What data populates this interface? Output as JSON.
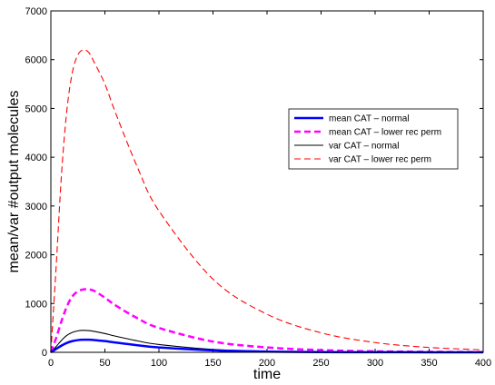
{
  "chart_data": {
    "type": "line",
    "title": "",
    "xlabel": "time",
    "ylabel": "mean/var #output molecules",
    "xlim": [
      0,
      400
    ],
    "ylim": [
      0,
      7000
    ],
    "x_ticks": [
      0,
      50,
      100,
      150,
      200,
      250,
      300,
      350,
      400
    ],
    "y_ticks": [
      0,
      1000,
      2000,
      3000,
      4000,
      5000,
      6000,
      7000
    ],
    "grid": false,
    "legend_position": "center-right",
    "series": [
      {
        "name": "mean CAT – normal",
        "color": "#0000ff",
        "style": "solid-thick",
        "x": [
          0,
          5,
          10,
          15,
          20,
          25,
          30,
          35,
          40,
          50,
          60,
          80,
          100,
          150,
          200,
          250,
          300,
          350,
          400
        ],
        "y": [
          0,
          70,
          140,
          195,
          230,
          250,
          258,
          258,
          252,
          230,
          200,
          145,
          100,
          40,
          15,
          5,
          2,
          1,
          0
        ]
      },
      {
        "name": "mean CAT – lower rec perm",
        "color": "#ff00ff",
        "style": "dashed-thick",
        "x": [
          0,
          5,
          10,
          15,
          20,
          25,
          30,
          35,
          40,
          50,
          60,
          80,
          100,
          150,
          200,
          250,
          300,
          350,
          400
        ],
        "y": [
          0,
          300,
          650,
          950,
          1150,
          1250,
          1290,
          1290,
          1260,
          1120,
          960,
          700,
          500,
          220,
          100,
          45,
          20,
          10,
          5
        ]
      },
      {
        "name": "var CAT – normal",
        "color": "#000000",
        "style": "solid-thin",
        "x": [
          0,
          5,
          10,
          15,
          20,
          25,
          30,
          35,
          40,
          50,
          60,
          80,
          100,
          150,
          200,
          250,
          300,
          350,
          400
        ],
        "y": [
          0,
          120,
          250,
          350,
          410,
          440,
          450,
          445,
          430,
          385,
          330,
          235,
          160,
          60,
          20,
          8,
          3,
          1,
          0
        ]
      },
      {
        "name": "var CAT – lower rec perm",
        "color": "#ff0000",
        "style": "dashed-thin",
        "x": [
          0,
          5,
          10,
          15,
          20,
          25,
          30,
          35,
          40,
          50,
          60,
          80,
          100,
          150,
          200,
          250,
          300,
          350,
          400
        ],
        "y": [
          0,
          1800,
          3700,
          5000,
          5750,
          6100,
          6200,
          6150,
          5950,
          5500,
          4900,
          3800,
          2900,
          1500,
          780,
          400,
          200,
          100,
          50
        ]
      }
    ]
  }
}
